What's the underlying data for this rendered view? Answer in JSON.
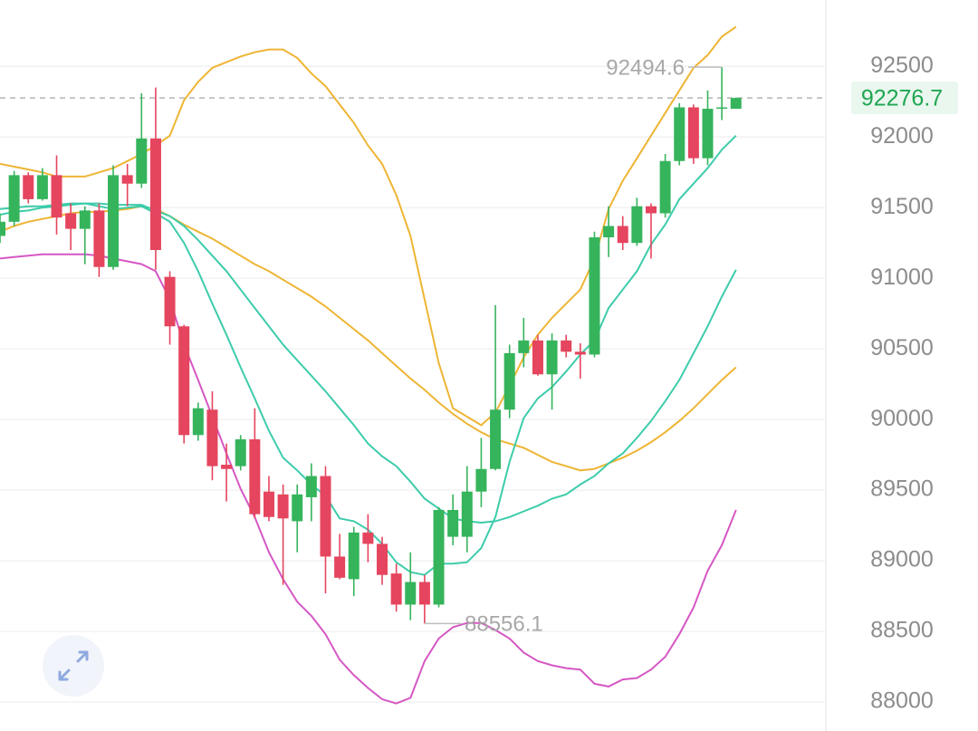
{
  "chart_data": {
    "type": "candlestick",
    "categories": [
      null,
      null,
      null,
      null,
      null,
      null,
      null,
      null,
      null,
      null,
      null,
      null,
      null,
      null,
      null,
      null,
      null,
      null,
      null,
      null,
      null,
      null,
      null,
      null,
      null,
      null,
      null,
      null,
      null,
      null,
      null,
      null,
      null,
      null,
      null,
      null,
      null,
      null,
      null,
      null,
      null,
      null,
      null,
      null,
      null,
      null,
      null,
      null,
      null,
      null,
      null,
      null,
      null
    ],
    "open": [
      91300,
      91400,
      91730,
      91560,
      91730,
      91460,
      91350,
      91480,
      91080,
      91730,
      91670,
      91990,
      91010,
      90660,
      89890,
      90070,
      89680,
      89670,
      89860,
      89490,
      89470,
      89280,
      89450,
      89600,
      89030,
      88870,
      89200,
      89120,
      88910,
      88690,
      88850,
      88690,
      89170,
      89170,
      89490,
      89650,
      90070,
      90470,
      90560,
      90320,
      90560,
      90480,
      90460,
      91290,
      91370,
      91250,
      91510,
      91460,
      91830,
      92210,
      91850,
      92200,
      92200
    ],
    "close": [
      91400,
      91730,
      91560,
      91730,
      91430,
      91350,
      91480,
      91080,
      91730,
      91670,
      91990,
      91200,
      90660,
      89890,
      90080,
      89670,
      89650,
      89860,
      89330,
      89310,
      89300,
      89470,
      89600,
      89030,
      88880,
      89200,
      89120,
      88900,
      88690,
      88850,
      88690,
      89360,
      89360,
      89490,
      89650,
      90070,
      90470,
      90560,
      90320,
      90560,
      90480,
      90460,
      91290,
      91370,
      91250,
      91510,
      91460,
      91830,
      92210,
      91850,
      92200,
      92210,
      92276.7
    ],
    "high": [
      91460,
      91760,
      91750,
      91780,
      91870,
      91530,
      91510,
      91530,
      91800,
      91810,
      92310,
      92350,
      91050,
      90670,
      90120,
      90200,
      89830,
      89890,
      90080,
      89600,
      89540,
      89540,
      89690,
      89670,
      89190,
      89240,
      89330,
      89170,
      88980,
      89060,
      88900,
      89380,
      89470,
      89670,
      89870,
      90810,
      90530,
      90720,
      90600,
      90610,
      90600,
      90540,
      91330,
      91510,
      91440,
      91570,
      91530,
      91880,
      92240,
      92230,
      92330,
      92494.6,
      92280
    ],
    "low": [
      91250,
      91370,
      91530,
      91550,
      91310,
      91200,
      91100,
      91010,
      91060,
      91510,
      91640,
      91060,
      90530,
      89830,
      89850,
      89570,
      89420,
      89640,
      89300,
      89280,
      88830,
      89060,
      89280,
      88770,
      88870,
      88750,
      88990,
      88830,
      88640,
      88580,
      88556.1,
      88670,
      89110,
      89060,
      89380,
      89640,
      90010,
      90370,
      90310,
      90070,
      90440,
      90290,
      90440,
      91150,
      91200,
      91230,
      91140,
      91430,
      91800,
      91810,
      91800,
      92120,
      92200
    ],
    "up_color": "#35b45c",
    "down_color": "#e5455e",
    "series": [
      {
        "color": "#eeb534",
        "values": [
          91810,
          91790,
          91770,
          91750,
          91720,
          91720,
          91720,
          91750,
          91780,
          91830,
          91880,
          91940,
          92010,
          92260,
          92390,
          92490,
          92530,
          92570,
          92600,
          92620,
          92620,
          92560,
          92450,
          92360,
          92230,
          92100,
          91940,
          91810,
          91590,
          91300,
          90850,
          90400,
          90080,
          90020,
          89960,
          90050,
          90240,
          90440,
          90600,
          90720,
          90820,
          90920,
          91140,
          91490,
          91690,
          91850,
          92010,
          92170,
          92330,
          92490,
          92580,
          92710,
          92780
        ]
      },
      {
        "color": "#eeb534",
        "values": [
          91330,
          91370,
          91400,
          91420,
          91440,
          91460,
          91470,
          91470,
          91480,
          91490,
          91510,
          91490,
          91440,
          91380,
          91330,
          91280,
          91220,
          91160,
          91100,
          91050,
          90990,
          90930,
          90870,
          90800,
          90720,
          90640,
          90560,
          90470,
          90380,
          90290,
          90210,
          90120,
          90040,
          89970,
          89910,
          89860,
          89830,
          89800,
          89750,
          89700,
          89670,
          89640,
          89650,
          89690,
          89730,
          89780,
          89840,
          89910,
          89990,
          90080,
          90180,
          90280,
          90370
        ]
      },
      {
        "color": "#3dccaa",
        "values": [
          91450,
          91470,
          91480,
          91500,
          91510,
          91520,
          91530,
          91510,
          91490,
          91500,
          91510,
          91460,
          91400,
          91250,
          91050,
          90820,
          90600,
          90370,
          90150,
          89920,
          89730,
          89640,
          89540,
          89460,
          89300,
          89280,
          89220,
          89120,
          88990,
          88920,
          88900,
          88980,
          88980,
          88990,
          89090,
          89310,
          89700,
          90010,
          90150,
          90230,
          90340,
          90460,
          90560,
          90790,
          90920,
          91050,
          91240,
          91380,
          91560,
          91670,
          91780,
          91910,
          92010
        ]
      },
      {
        "color": "#3dccaa",
        "values": [
          91490,
          91500,
          91510,
          91510,
          91520,
          91530,
          91530,
          91530,
          91520,
          91520,
          91520,
          91480,
          91440,
          91370,
          91270,
          91160,
          91050,
          90920,
          90790,
          90660,
          90530,
          90420,
          90310,
          90200,
          90080,
          89960,
          89830,
          89740,
          89670,
          89560,
          89440,
          89370,
          89300,
          89280,
          89270,
          89280,
          89310,
          89350,
          89390,
          89440,
          89470,
          89540,
          89600,
          89690,
          89760,
          89870,
          89990,
          90130,
          90280,
          90470,
          90660,
          90870,
          91060
        ]
      },
      {
        "color": "#d557c4",
        "values": [
          91140,
          91150,
          91160,
          91170,
          91170,
          91170,
          91170,
          91160,
          91140,
          91120,
          91100,
          91050,
          90850,
          90530,
          90280,
          90020,
          89760,
          89510,
          89310,
          89060,
          88870,
          88710,
          88610,
          88480,
          88300,
          88190,
          88100,
          88020,
          87990,
          88030,
          88290,
          88450,
          88530,
          88560,
          88560,
          88510,
          88450,
          88350,
          88290,
          88260,
          88240,
          88230,
          88130,
          88110,
          88160,
          88170,
          88230,
          88320,
          88480,
          88670,
          88930,
          89110,
          89360
        ]
      }
    ],
    "high_marker": 92494.6,
    "low_marker": 88556.1,
    "last_price": 92276.7,
    "ylim": [
      87840,
      92970
    ],
    "yticks": [
      88000,
      88500,
      89000,
      89500,
      90000,
      90500,
      91000,
      91500,
      92000,
      92500
    ],
    "grid": true
  }
}
